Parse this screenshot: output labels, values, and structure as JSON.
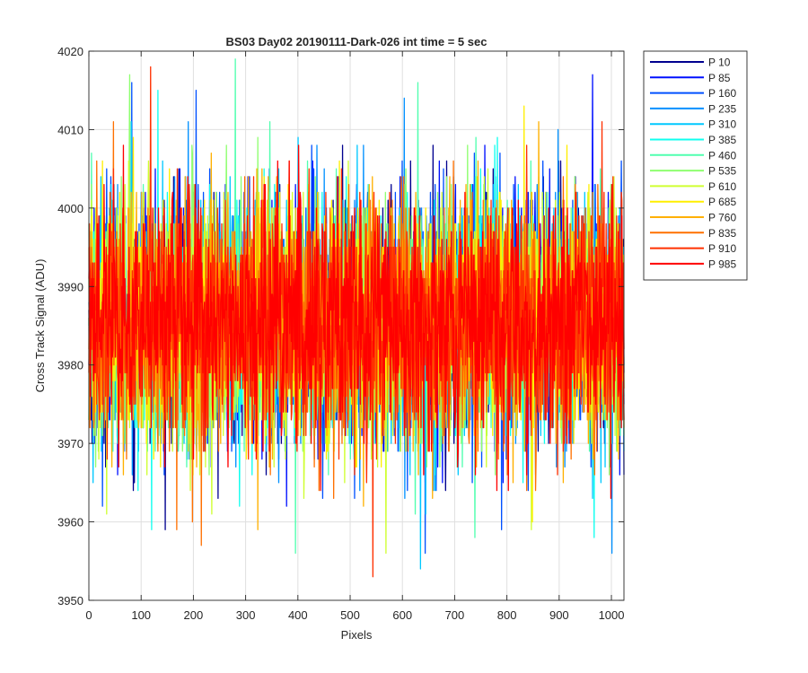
{
  "chart_data": {
    "type": "line",
    "title": "BS03 Day02 20190111-Dark-026 int time = 5 sec",
    "xlabel": "Pixels",
    "ylabel": "Cross Track Signal (ADU)",
    "xlim": [
      0,
      1024
    ],
    "ylim": [
      3950,
      4020
    ],
    "xticks": [
      0,
      100,
      200,
      300,
      400,
      500,
      600,
      700,
      800,
      900,
      1000
    ],
    "yticks": [
      3950,
      3960,
      3970,
      3980,
      3990,
      4000,
      4010,
      4020
    ],
    "grid": true,
    "legend_position": "outside-top-right",
    "noise": {
      "mean": 3985.5,
      "sigma": 7.5,
      "samples_per_series": 1024
    },
    "series": [
      {
        "name": "P 10",
        "color": "#00008f"
      },
      {
        "name": "P 85",
        "color": "#0010ff"
      },
      {
        "name": "P 160",
        "color": "#0050ff"
      },
      {
        "name": "P 235",
        "color": "#0090ff"
      },
      {
        "name": "P 310",
        "color": "#00c8ff"
      },
      {
        "name": "P 385",
        "color": "#10ffef"
      },
      {
        "name": "P 460",
        "color": "#50ffaf"
      },
      {
        "name": "P 535",
        "color": "#8fff70"
      },
      {
        "name": "P 610",
        "color": "#cfff30"
      },
      {
        "name": "P 685",
        "color": "#ffef00"
      },
      {
        "name": "P 760",
        "color": "#ffb000"
      },
      {
        "name": "P 835",
        "color": "#ff7000"
      },
      {
        "name": "P 910",
        "color": "#ff3000"
      },
      {
        "name": "P 985",
        "color": "#ff0000"
      }
    ],
    "highlights": [
      {
        "series": "P 910",
        "x": 118,
        "y": 4018
      },
      {
        "series": "P 535",
        "x": 78,
        "y": 4017
      },
      {
        "series": "P 460",
        "x": 280,
        "y": 4019
      },
      {
        "series": "P 160",
        "x": 205,
        "y": 4015
      },
      {
        "series": "P 85",
        "x": 963,
        "y": 4017
      },
      {
        "series": "P 910",
        "x": 543,
        "y": 3953
      },
      {
        "series": "P 310",
        "x": 634,
        "y": 3954
      },
      {
        "series": "P 235",
        "x": 1000,
        "y": 3956
      },
      {
        "series": "P 460",
        "x": 738,
        "y": 3958
      },
      {
        "series": "P 610",
        "x": 235,
        "y": 3961
      },
      {
        "series": "P 760",
        "x": 323,
        "y": 3959
      }
    ]
  }
}
